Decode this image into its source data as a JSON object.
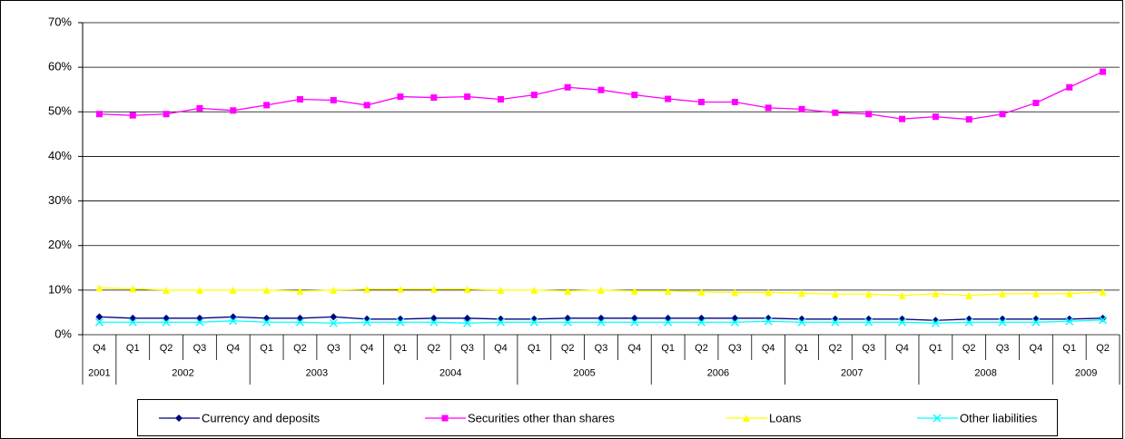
{
  "chart_data": {
    "type": "line",
    "categories": [
      "Q4",
      "Q1",
      "Q2",
      "Q3",
      "Q4",
      "Q1",
      "Q2",
      "Q3",
      "Q4",
      "Q1",
      "Q2",
      "Q3",
      "Q4",
      "Q1",
      "Q2",
      "Q3",
      "Q4",
      "Q1",
      "Q2",
      "Q3",
      "Q4",
      "Q1",
      "Q2",
      "Q3",
      "Q4",
      "Q1",
      "Q2",
      "Q3",
      "Q4",
      "Q1",
      "Q2"
    ],
    "year_groups": [
      {
        "label": "2001",
        "quarters": 1
      },
      {
        "label": "2002",
        "quarters": 4
      },
      {
        "label": "2003",
        "quarters": 4
      },
      {
        "label": "2004",
        "quarters": 4
      },
      {
        "label": "2005",
        "quarters": 4
      },
      {
        "label": "2006",
        "quarters": 4
      },
      {
        "label": "2007",
        "quarters": 4
      },
      {
        "label": "2008",
        "quarters": 4
      },
      {
        "label": "2009",
        "quarters": 2
      }
    ],
    "series": [
      {
        "name": "Currency and deposits",
        "color": "#000080",
        "marker": "diamond",
        "values": [
          4,
          3.7,
          3.7,
          3.7,
          4,
          3.7,
          3.7,
          4,
          3.5,
          3.5,
          3.7,
          3.7,
          3.5,
          3.5,
          3.7,
          3.7,
          3.7,
          3.7,
          3.7,
          3.7,
          3.7,
          3.5,
          3.5,
          3.5,
          3.5,
          3.2,
          3.5,
          3.5,
          3.5,
          3.5,
          3.7
        ]
      },
      {
        "name": "Securities other than shares",
        "color": "#ff00ff",
        "marker": "square",
        "values": [
          49.5,
          49.2,
          49.5,
          50.8,
          50.3,
          51.5,
          52.8,
          52.6,
          51.5,
          53.4,
          53.2,
          53.4,
          52.8,
          53.8,
          55.5,
          54.9,
          53.8,
          52.9,
          52.2,
          52.2,
          50.9,
          50.6,
          49.8,
          49.5,
          48.4,
          48.9,
          48.3,
          49.5,
          52,
          55.5,
          59
        ]
      },
      {
        "name": "Loans",
        "color": "#ffff00",
        "marker": "triangle",
        "values": [
          10.5,
          10.3,
          10,
          10,
          10,
          10,
          9.8,
          10,
          10.2,
          10.2,
          10.2,
          10.2,
          10,
          10,
          9.8,
          10,
          9.8,
          9.8,
          9.6,
          9.5,
          9.5,
          9.3,
          9.1,
          9.1,
          8.8,
          9.2,
          8.8,
          9.2,
          9.2,
          9.2,
          9.6
        ]
      },
      {
        "name": "Other liabilities",
        "color": "#00ffff",
        "marker": "x",
        "values": [
          2.8,
          2.8,
          2.8,
          2.8,
          3.1,
          2.8,
          2.8,
          2.6,
          2.8,
          2.8,
          2.8,
          2.6,
          2.8,
          2.8,
          2.8,
          2.8,
          2.8,
          2.8,
          2.8,
          2.8,
          3,
          2.8,
          2.8,
          2.8,
          2.8,
          2.6,
          2.8,
          2.8,
          2.8,
          3,
          3.3
        ]
      }
    ],
    "ylim": [
      0,
      70
    ],
    "yticks": [
      {
        "value": 0,
        "label": "0%"
      },
      {
        "value": 10,
        "label": "10%"
      },
      {
        "value": 20,
        "label": "20%"
      },
      {
        "value": 30,
        "label": "30%"
      },
      {
        "value": 40,
        "label": "40%"
      },
      {
        "value": 50,
        "label": "50%"
      },
      {
        "value": 60,
        "label": "60%"
      },
      {
        "value": 70,
        "label": "70%"
      }
    ],
    "grid": true,
    "legend": "bottom"
  }
}
